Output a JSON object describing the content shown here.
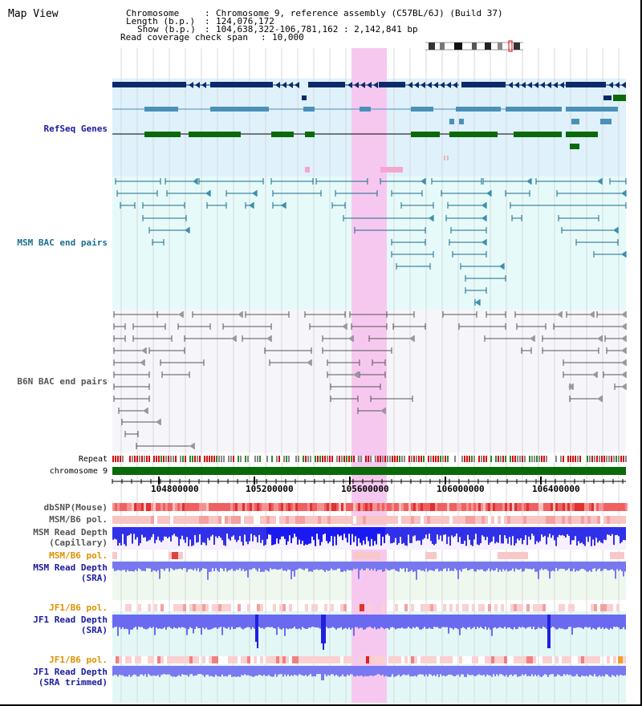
{
  "page": {
    "title": "Map View"
  },
  "header": {
    "chromosome_key": "Chromosome",
    "chromosome_value": "Chromosome 9, reference assembly (C57BL/6J) (Build 37)",
    "length_key": "Length (b.p.)",
    "length_value": "124,076,172",
    "show_key": "Show (b.p.)",
    "show_value": "104,638,322-106,781,162 : 2,142,841 bp",
    "coverage_key": "Read coverage check span",
    "coverage_value": "10,000"
  },
  "tracks": {
    "refseq": "RefSeq Genes",
    "msm_bac": "MSM BAC end pairs",
    "b6n_bac": "B6N BAC end pairs",
    "repeat": "Repeat",
    "chromosome": "chromosome 9",
    "dbsnp": "dbSNP(Mouse)",
    "msm_b6_pol_1": "MSM/B6 pol.",
    "msm_depth_cap_1": "MSM Read Depth",
    "msm_depth_cap_2": "(Capillary)",
    "msm_b6_pol_2": "MSM/B6 pol.",
    "msm_depth_sra_1": "MSM Read Depth",
    "msm_depth_sra_2": "(SRA)",
    "jf1_b6_pol_1": "JF1/B6 pol.",
    "jf1_depth_sra_1": "JF1 Read Depth",
    "jf1_depth_sra_2": "(SRA)",
    "jf1_b6_pol_2": "JF1/B6 pol.",
    "jf1_depth_trim_1": "JF1 Read Depth",
    "jf1_depth_trim_2": "(SRA trimmed)"
  },
  "axis": {
    "ticks": [
      "104800000",
      "105200000",
      "105600000",
      "106000000",
      "106400000"
    ]
  },
  "colors": {
    "refseq_dark": "#0a2a6a",
    "refseq_mid": "#4a90b8",
    "refseq_green": "#0a6a0a",
    "msm_bac_line": "#1a6a8a",
    "b6n_bac_line": "#555555",
    "highlight": "#f7c8ef",
    "chrom_bar": "#0a6a0a",
    "depth_blue": "#2a2af0",
    "label_blue": "#1a1aa0",
    "label_teal": "#1a7090",
    "label_orange": "#e09000"
  }
}
